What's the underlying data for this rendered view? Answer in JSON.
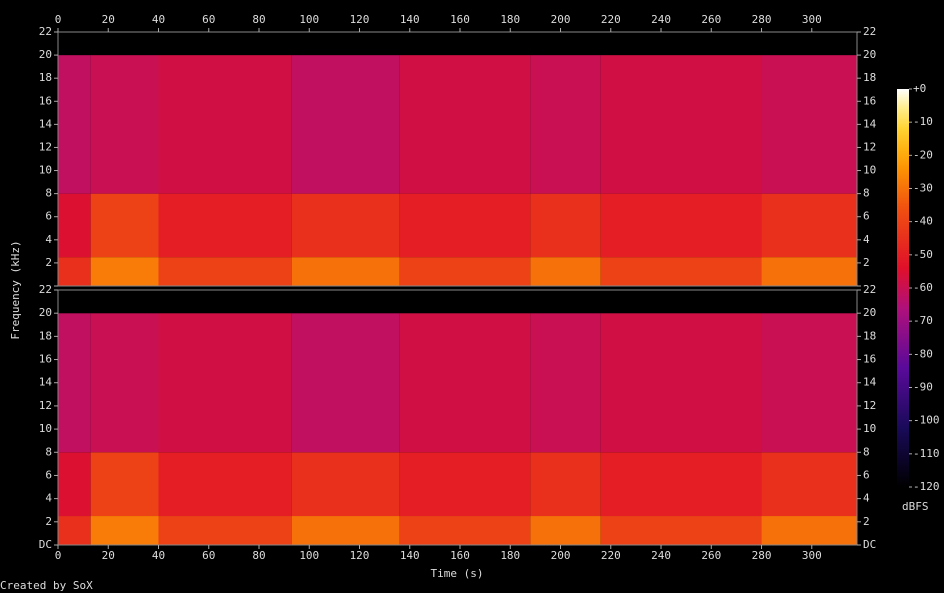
{
  "chart_data": {
    "type": "spectrogram",
    "xlabel": "Time (s)",
    "ylabel": "Frequency (kHz)",
    "colorbar_label": "dBFS",
    "credit": "Created by SoX",
    "xlim": [
      0,
      318
    ],
    "xticks": [
      0,
      20,
      40,
      60,
      80,
      100,
      120,
      140,
      160,
      180,
      200,
      220,
      240,
      260,
      280,
      300
    ],
    "ylim": [
      0,
      22
    ],
    "yticks": [
      {
        "value": 0,
        "label": "DC"
      },
      2,
      4,
      6,
      8,
      10,
      12,
      14,
      16,
      18,
      20,
      22
    ],
    "zlim": [
      -120,
      0
    ],
    "zticks": [
      {
        "value": 0,
        "label": "+0"
      },
      -10,
      -20,
      -30,
      -40,
      -50,
      -60,
      -70,
      -80,
      -90,
      -100,
      -110,
      -120
    ],
    "time_edges": [
      0,
      13,
      40,
      93,
      136,
      188,
      216,
      280,
      318
    ],
    "freq_edges": [
      0,
      2.5,
      8,
      20,
      22
    ],
    "channels": [
      {
        "levels": [
          [
            -45,
            -55,
            -62,
            -120
          ],
          [
            -28,
            -40,
            -60,
            -120
          ],
          [
            -40,
            -50,
            -58,
            -120
          ],
          [
            -30,
            -45,
            -62,
            -120
          ],
          [
            -40,
            -50,
            -58,
            -120
          ],
          [
            -30,
            -45,
            -60,
            -120
          ],
          [
            -40,
            -50,
            -58,
            -120
          ],
          [
            -30,
            -45,
            -60,
            -120
          ]
        ]
      },
      {
        "levels": [
          [
            -45,
            -55,
            -62,
            -120
          ],
          [
            -28,
            -40,
            -60,
            -120
          ],
          [
            -40,
            -50,
            -58,
            -120
          ],
          [
            -30,
            -45,
            -62,
            -120
          ],
          [
            -40,
            -50,
            -58,
            -120
          ],
          [
            -30,
            -45,
            -60,
            -120
          ],
          [
            -40,
            -50,
            -58,
            -120
          ],
          [
            -30,
            -45,
            -60,
            -120
          ]
        ]
      }
    ]
  }
}
